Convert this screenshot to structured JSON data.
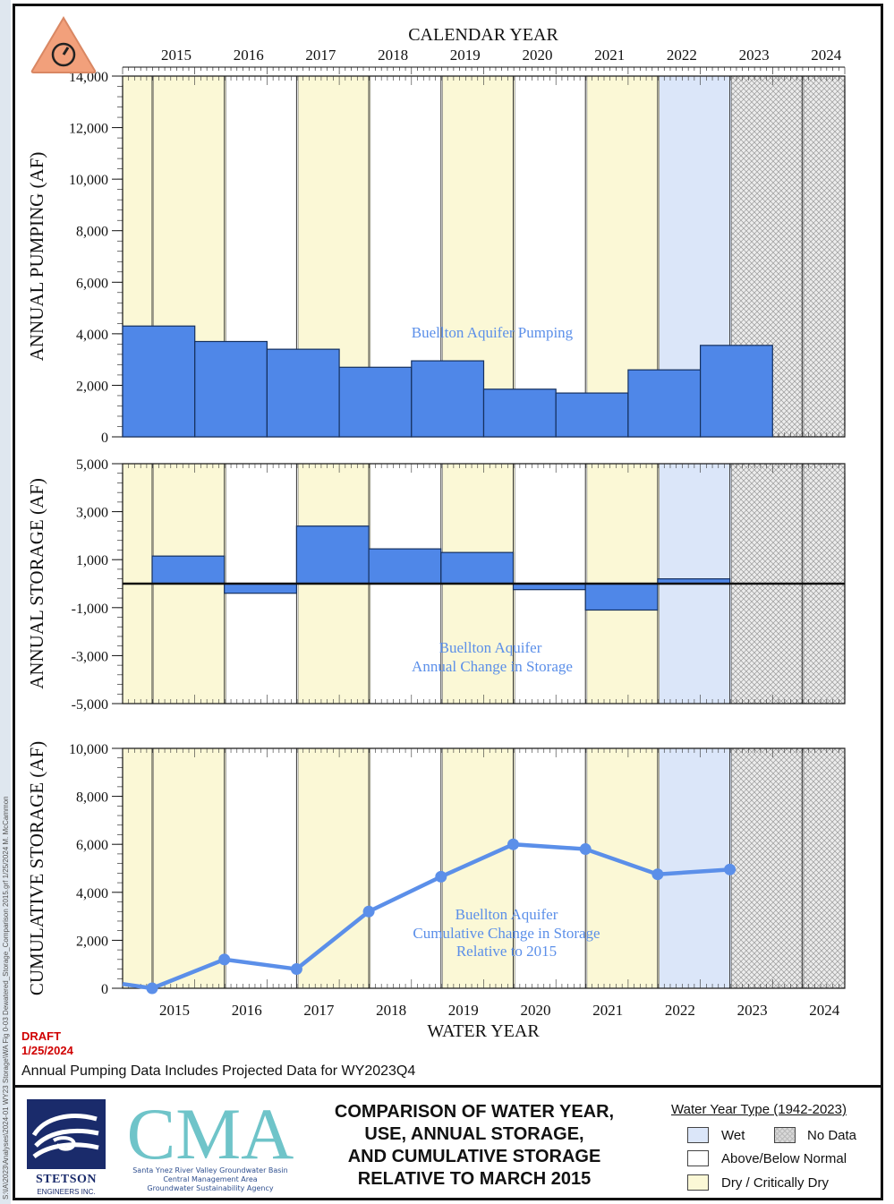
{
  "page": {
    "draft_label": "DRAFT",
    "draft_date": "1/25/2024",
    "note": "Annual Pumping Data Includes Projected Data for WY2023Q4",
    "side_path": "S:\\IA\\2023\\Analyses\\2024-01 WY23 Storage\\WA Fig 0-03 Dewatered_Storage_Comparison 2015.grf 1/25/2024 M. McCammon"
  },
  "title_block": {
    "lines": [
      "COMPARISON OF WATER YEAR,",
      "USE, ANNUAL STORAGE,",
      "AND CUMULATIVE STORAGE",
      "RELATIVE TO MARCH 2015"
    ]
  },
  "logos": {
    "stetson_name": "STETSON",
    "stetson_sub": "ENGINEERS INC.",
    "cma_text": "CMA",
    "cma_sub": [
      "Santa Ynez River Valley Groundwater Basin",
      "Central Management Area",
      "Groundwater Sustainability Agency"
    ]
  },
  "legend": {
    "title": "Water Year Type (1942-2023)",
    "items": [
      {
        "label": "Wet",
        "color": "#dbe6f9"
      },
      {
        "label": "No Data",
        "color": "#d9d9d9"
      },
      {
        "label": "Above/Below Normal",
        "color": "#ffffff"
      },
      {
        "label": "Dry / Critically Dry",
        "color": "#fbf8d6"
      }
    ]
  },
  "colors": {
    "dry": "#fbf8d6",
    "wet": "#dbe6f9",
    "normal": "#ffffff",
    "bar": "#4f87e8",
    "bar_stroke": "#15305e",
    "line": "#5b8fe9",
    "annotation": "#5b8fe9",
    "nodata": "#d9d9d9"
  },
  "chart_data": [
    {
      "type": "bar",
      "top_axis_title": "CALENDAR YEAR",
      "top_axis_labels": [
        "2015",
        "2016",
        "2017",
        "2018",
        "2019",
        "2020",
        "2021",
        "2022",
        "2023",
        "2024"
      ],
      "ylabel": "ANNUAL PUMPING (AF)",
      "ylim": [
        0,
        14000
      ],
      "ytick_labels": [
        "0",
        "2,000",
        "4,000",
        "6,000",
        "8,000",
        "10,000",
        "12,000",
        "14,000"
      ],
      "annotation": [
        "Buellton Aquifer Pumping"
      ],
      "water_year_types": [
        "Dry",
        "Dry",
        "Above/Below Normal",
        "Dry",
        "Above/Below Normal",
        "Dry",
        "Above/Below Normal",
        "Dry",
        "Wet",
        "No Data"
      ],
      "categories": [
        "2015",
        "2016",
        "2017",
        "2018",
        "2019",
        "2020",
        "2021",
        "2022",
        "2023"
      ],
      "values": [
        4300,
        3700,
        3400,
        2700,
        2950,
        1850,
        1700,
        2600,
        3550
      ]
    },
    {
      "type": "bar",
      "ylabel": "ANNUAL STORAGE (AF)",
      "ylim": [
        -5000,
        5000
      ],
      "ytick_labels": [
        "-5,000",
        "-3,000",
        "-1,000",
        "1,000",
        "3,000",
        "5,000"
      ],
      "annotation": [
        "Buellton Aquifer",
        "Annual Change in Storage"
      ],
      "categories": [
        "2015",
        "2016",
        "2017",
        "2018",
        "2019",
        "2020",
        "2021",
        "2022"
      ],
      "values": [
        1150,
        -400,
        2400,
        1450,
        1300,
        -250,
        -1100,
        200
      ]
    },
    {
      "type": "line",
      "ylabel": "CUMULATIVE STORAGE (AF)",
      "xlabel": "WATER YEAR",
      "ylim": [
        0,
        10000
      ],
      "ytick_labels": [
        "0",
        "2,000",
        "4,000",
        "6,000",
        "8,000",
        "10,000"
      ],
      "xtick_labels": [
        "2015",
        "2016",
        "2017",
        "2018",
        "2019",
        "2020",
        "2021",
        "2022",
        "2023",
        "2024"
      ],
      "annotation": [
        "Buellton Aquifer",
        "Cumulative Change in Storage",
        "Relative to 2015"
      ],
      "series": [
        {
          "x": [
            "2015",
            "2016",
            "2017",
            "2018",
            "2019",
            "2020",
            "2021",
            "2022",
            "2023"
          ],
          "values": [
            0,
            1200,
            800,
            3200,
            4650,
            6000,
            5800,
            4750,
            4950
          ]
        }
      ]
    }
  ]
}
